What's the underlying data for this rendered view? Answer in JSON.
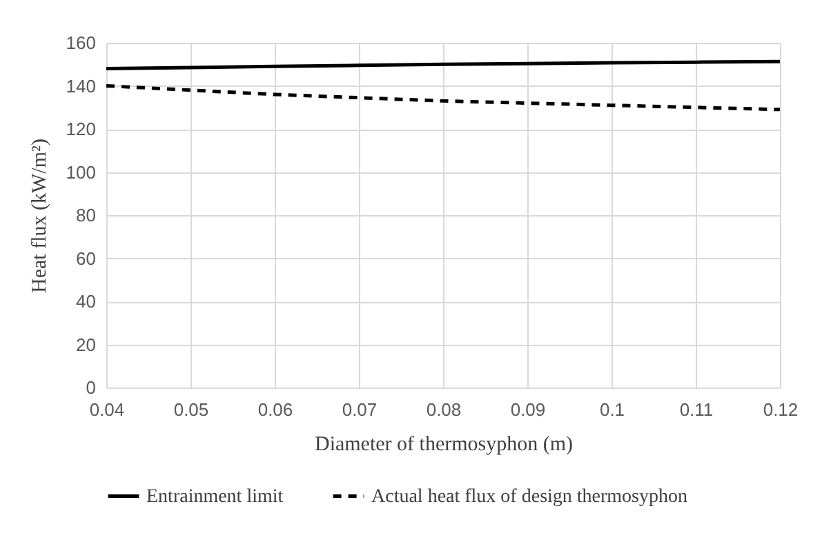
{
  "chart_data": {
    "type": "line",
    "xlabel": "Diameter of thermosyphon (m)",
    "ylabel": "Heat flux (kW/m²)",
    "x": [
      0.04,
      0.05,
      0.06,
      0.07,
      0.08,
      0.09,
      0.1,
      0.11,
      0.12
    ],
    "series": [
      {
        "name": "Entrainment limit",
        "color": "#000000",
        "line_style": "solid",
        "values": [
          148,
          148.5,
          149,
          149.5,
          150,
          150.3,
          150.7,
          151,
          151.3
        ]
      },
      {
        "name": "Actual heat flux of design thermosyphon",
        "color": "#000000",
        "line_style": "dashed",
        "values": [
          140,
          138,
          136,
          134.5,
          133,
          132,
          131,
          130,
          129
        ]
      }
    ],
    "xlim": [
      0.04,
      0.12
    ],
    "xticks": [
      0.04,
      0.05,
      0.06,
      0.07,
      0.08,
      0.09,
      0.1,
      0.11,
      0.12
    ],
    "ylim": [
      0,
      160
    ],
    "yticks": [
      0,
      20,
      40,
      60,
      80,
      100,
      120,
      140,
      160
    ],
    "grid": true,
    "legend": "bottom",
    "marker": "none"
  }
}
